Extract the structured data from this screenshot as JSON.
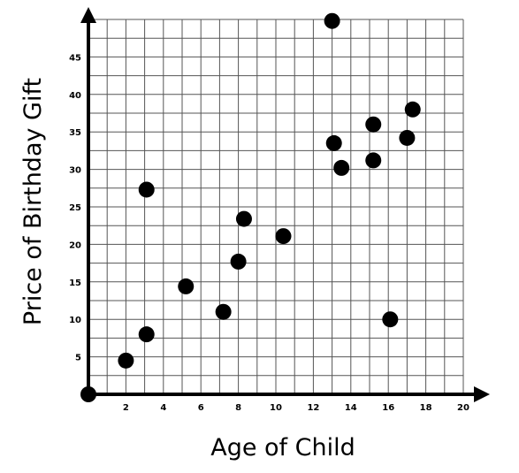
{
  "chart_data": {
    "type": "scatter",
    "title": "",
    "xlabel": "Age of Child",
    "ylabel": "Price of Birthday Gift",
    "xlim": [
      0,
      20
    ],
    "ylim": [
      0,
      50
    ],
    "grid": true,
    "x_ticks": [
      2,
      4,
      6,
      8,
      10,
      12,
      14,
      16,
      18,
      20
    ],
    "y_ticks": [
      5,
      10,
      15,
      20,
      25,
      30,
      35,
      40,
      45
    ],
    "x_tick_labels": [
      "2",
      "4",
      "6",
      "8",
      "10",
      "12",
      "14",
      "16",
      "18",
      "20"
    ],
    "y_tick_labels": [
      "5",
      "10",
      "15",
      "20",
      "25",
      "30",
      "35",
      "40",
      "45"
    ],
    "points": [
      {
        "x": 0,
        "y": 0
      },
      {
        "x": 2,
        "y": 4.5
      },
      {
        "x": 3.1,
        "y": 8
      },
      {
        "x": 3.1,
        "y": 27.3
      },
      {
        "x": 5.2,
        "y": 14.4
      },
      {
        "x": 7.2,
        "y": 11
      },
      {
        "x": 8,
        "y": 17.7
      },
      {
        "x": 8.3,
        "y": 23.4
      },
      {
        "x": 10.4,
        "y": 21.1
      },
      {
        "x": 13,
        "y": 49.8
      },
      {
        "x": 13.1,
        "y": 33.5
      },
      {
        "x": 13.5,
        "y": 30.2
      },
      {
        "x": 15.2,
        "y": 36
      },
      {
        "x": 15.2,
        "y": 31.2
      },
      {
        "x": 16.1,
        "y": 10
      },
      {
        "x": 17,
        "y": 34.2
      },
      {
        "x": 17.3,
        "y": 38
      }
    ]
  }
}
